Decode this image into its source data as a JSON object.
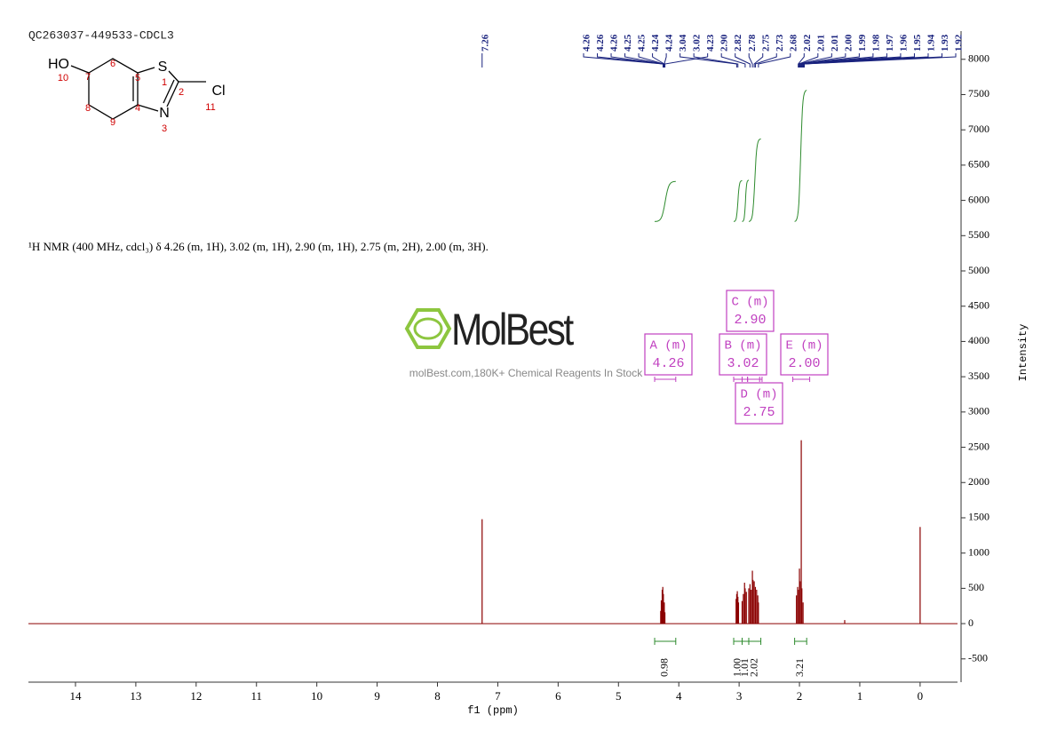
{
  "chart_data": {
    "type": "nmr",
    "title": "QC263037-449533-CDCL3",
    "description": "¹H NMR (400 MHz, cdcl₃) δ 4.26 (m, 1H), 3.02 (m, 1H), 2.90 (m, 1H), 2.75 (m, 2H), 2.00 (m, 3H).",
    "x_label": "f1 (ppm)",
    "y_label": "Intensity",
    "xlim": [
      14.78,
      -0.62
    ],
    "xticks": [
      14,
      13,
      12,
      11,
      10,
      9,
      8,
      7,
      6,
      5,
      4,
      3,
      2,
      1,
      0
    ],
    "ylim": [
      -830,
      8400
    ],
    "yticks": [
      -500,
      0,
      500,
      1000,
      1500,
      2000,
      2500,
      3000,
      3500,
      4000,
      4500,
      5000,
      5500,
      6000,
      6500,
      7000,
      7500,
      8000
    ],
    "spectrum": {
      "color": "#8b0000",
      "x": [
        7.26,
        4.3,
        4.29,
        4.275,
        4.265,
        4.255,
        4.24,
        4.23,
        3.05,
        3.04,
        3.03,
        3.02,
        3.01,
        2.95,
        2.93,
        2.91,
        2.9,
        2.88,
        2.84,
        2.82,
        2.8,
        2.78,
        2.77,
        2.75,
        2.73,
        2.71,
        2.69,
        2.68,
        2.05,
        2.03,
        2.02,
        2.0,
        1.99,
        1.97,
        1.96,
        1.94,
        1.25,
        0.0
      ],
      "values": [
        1480,
        180,
        330,
        480,
        520,
        420,
        300,
        160,
        350,
        420,
        460,
        380,
        300,
        320,
        420,
        580,
        500,
        450,
        500,
        560,
        480,
        750,
        620,
        600,
        520,
        480,
        400,
        300,
        400,
        520,
        480,
        780,
        600,
        2600,
        500,
        300,
        50,
        1370
      ]
    },
    "peak_labels": {
      "color": "#1a237e",
      "values": [
        7.26,
        4.26,
        4.26,
        4.26,
        4.25,
        4.25,
        4.24,
        4.24,
        3.04,
        3.02,
        4.23,
        2.9,
        2.82,
        2.78,
        2.75,
        2.73,
        2.68,
        2.02,
        2.01,
        2.01,
        2.0,
        1.99,
        1.98,
        1.97,
        1.96,
        1.95,
        1.94,
        1.93,
        1.92
      ],
      "value_labels": [
        "7.26",
        "4.26",
        "4.26",
        "4.26",
        "4.25",
        "4.25",
        "4.24",
        "4.24",
        "3.04",
        "3.02",
        "4.23",
        "2.90",
        "2.82",
        "2.78",
        "2.75",
        "2.73",
        "2.68",
        "2.02",
        "2.01",
        "2.01",
        "2.00",
        "1.99",
        "1.98",
        "1.97",
        "1.96",
        "1.95",
        "1.94",
        "1.93",
        "1.92"
      ]
    },
    "integrals": {
      "color": "#2e8b2e",
      "ranges": [
        [
          4.4,
          4.05
        ],
        [
          3.09,
          2.95
        ],
        [
          2.95,
          2.84
        ],
        [
          2.84,
          2.64
        ],
        [
          2.08,
          1.88
        ]
      ],
      "values": [
        0.98,
        1.0,
        1.01,
        2.02,
        3.21
      ],
      "value_labels": [
        "0.98",
        "1.00",
        "1.01",
        "2.02",
        "3.21"
      ]
    },
    "multiplets": {
      "color": "#c040c0",
      "names": [
        "A (m)",
        "B (m)",
        "C (m)",
        "D (m)",
        "E (m)"
      ],
      "shifts": [
        4.26,
        3.02,
        2.9,
        2.75,
        2.0
      ],
      "shift_labels": [
        "4.26",
        "3.02",
        "2.90",
        "2.75",
        "2.00"
      ],
      "ranges": [
        [
          4.4,
          4.05
        ],
        [
          3.09,
          2.62
        ],
        [
          2.95,
          2.86
        ],
        [
          2.86,
          2.66
        ],
        [
          2.11,
          1.83
        ]
      ]
    }
  },
  "structure": {
    "atoms": [
      "HO",
      "S",
      "Cl",
      "N"
    ],
    "numbers": [
      "10",
      "7",
      "6",
      "5",
      "1",
      "2",
      "11",
      "3",
      "4",
      "8",
      "9"
    ]
  },
  "watermark": {
    "brand": "MolBest",
    "tagline": "molBest.com,180K+ Chemical Reagents In Stock"
  }
}
